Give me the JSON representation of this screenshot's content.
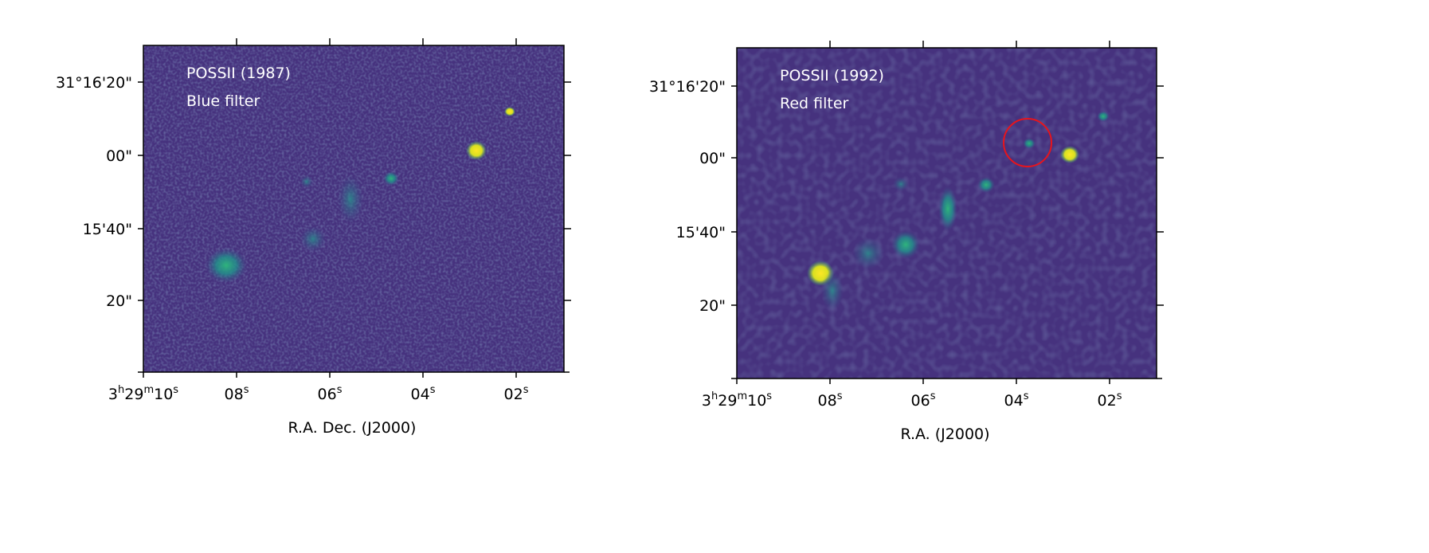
{
  "chart_data": [
    {
      "type": "heatmap",
      "annotation": [
        "POSSII (1987)",
        "Blue filter"
      ],
      "xlabel": "R.A. Dec. (J2000)",
      "x_ticks": [
        {
          "h": "3",
          "m": "29",
          "s": "10"
        },
        {
          "s": "08"
        },
        {
          "s": "06"
        },
        {
          "s": "04"
        },
        {
          "s": "02"
        }
      ],
      "y_ticks": [
        "31°16'20\"",
        "00\"",
        "15'40\"",
        "20\""
      ],
      "colormap": "viridis",
      "highlight_circle": false
    },
    {
      "type": "heatmap",
      "annotation": [
        "POSSII (1992)",
        "Red filter"
      ],
      "xlabel": "R.A. (J2000)",
      "x_ticks": [
        {
          "h": "3",
          "m": "29",
          "s": "10"
        },
        {
          "s": "08"
        },
        {
          "s": "06"
        },
        {
          "s": "04"
        },
        {
          "s": "02"
        }
      ],
      "y_ticks": [
        "31°16'20\"",
        "00\"",
        "15'40\"",
        "20\""
      ],
      "colormap": "viridis",
      "highlight_circle": true,
      "highlight_color": "#e8141c"
    }
  ],
  "colors": {
    "background": "#46327e",
    "mid": "#2a8f8a",
    "bright": "#fde725"
  }
}
